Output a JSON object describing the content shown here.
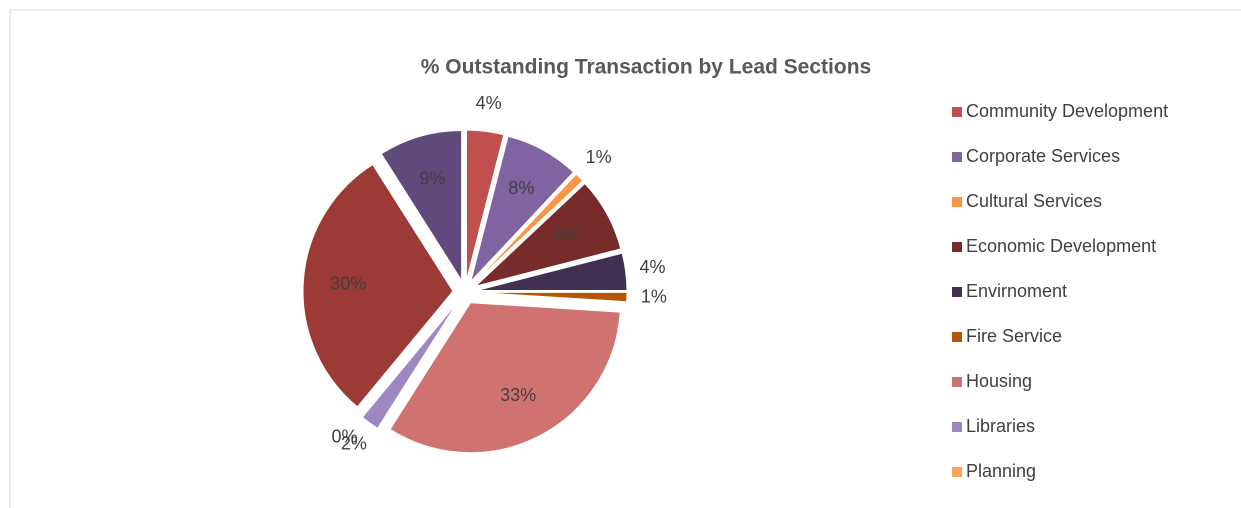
{
  "chart_data": {
    "type": "pie",
    "title": "% Outstanding Transaction by Lead Sections",
    "categories": [
      "Community Development",
      "Corporate Services",
      "Cultural Services",
      "Economic Development",
      "Envirnoment",
      "Fire Service",
      "Housing",
      "Libraries",
      "Planning",
      null,
      null
    ],
    "values": [
      4,
      8,
      1,
      8,
      4,
      1,
      33,
      2,
      0,
      30,
      9
    ],
    "value_labels": [
      "4%",
      "8%",
      "1%",
      "8%",
      "4%",
      "1%",
      "33%",
      "2%",
      "0%",
      "30%",
      "9%"
    ],
    "colors": [
      "#c0504d",
      "#8064a2",
      "#f79646",
      "#772c2a",
      "#403152",
      "#b65708",
      "#d07370",
      "#9e88c2",
      "#f9a55f",
      "#9c3a36",
      "#604a7b"
    ],
    "legend": "right"
  }
}
